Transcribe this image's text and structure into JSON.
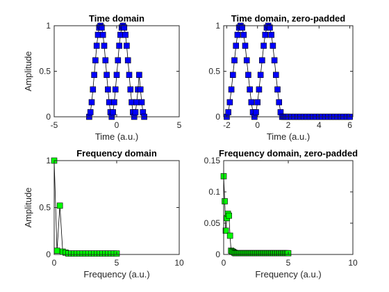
{
  "chart_data": [
    {
      "type": "line",
      "title": "Time domain",
      "xlabel": "Time (a.u.)",
      "ylabel": "Amplitude",
      "xlim": [
        -5,
        5
      ],
      "ylim": [
        0,
        1
      ],
      "xticks": [
        "-5",
        "0",
        "5"
      ],
      "yticks": [
        "0",
        "0.5",
        "1"
      ],
      "marker_color": "#0000ff",
      "line_color": "#000000",
      "series": [
        {
          "x": [
            -2.2,
            -2.1,
            -2.0,
            -1.9,
            -1.8,
            -1.7,
            -1.6,
            -1.5,
            -1.4,
            -1.3,
            -1.2,
            -1.1,
            -1.0,
            -0.9,
            -0.8,
            -0.7,
            -0.6,
            -0.5,
            -0.4,
            -0.3,
            -0.2,
            -0.1,
            0.0,
            0.1,
            0.2,
            0.3,
            0.4,
            0.5,
            0.6,
            0.7,
            0.8,
            0.9,
            1.0,
            1.1,
            1.2,
            1.3,
            1.4,
            1.5,
            1.6,
            1.7,
            1.8,
            1.9,
            2.0,
            2.1,
            2.2
          ],
          "y": [
            0.0,
            0.05,
            0.16,
            0.3,
            0.46,
            0.62,
            0.78,
            0.9,
            0.98,
            1.0,
            0.98,
            0.9,
            0.78,
            0.62,
            0.46,
            0.3,
            0.16,
            0.05,
            0.0,
            0.05,
            0.16,
            0.3,
            0.46,
            0.62,
            0.78,
            0.9,
            0.98,
            1.0,
            0.98,
            0.9,
            0.78,
            0.62,
            0.46,
            0.3,
            0.16,
            0.05,
            0.0,
            0.05,
            0.16,
            0.3,
            0.46,
            0.3,
            0.16,
            0.05,
            0.0
          ]
        }
      ]
    },
    {
      "type": "line",
      "title": "Time domain, zero-padded",
      "xlabel": "Time (a.u.)",
      "ylabel": "",
      "xlim": [
        -2.2,
        6.2
      ],
      "ylim": [
        0,
        1
      ],
      "xticks": [
        "-2",
        "0",
        "2",
        "4",
        "6"
      ],
      "xtick_values": [
        -2,
        0,
        2,
        4,
        6
      ],
      "yticks": [
        "0",
        "0.5",
        "1"
      ],
      "marker_color": "#0000ff",
      "line_color": "#000000",
      "series": [
        {
          "x": [
            -2.0,
            -1.9,
            -1.8,
            -1.7,
            -1.6,
            -1.5,
            -1.4,
            -1.3,
            -1.2,
            -1.1,
            -1.0,
            -0.9,
            -0.8,
            -0.7,
            -0.6,
            -0.5,
            -0.4,
            -0.3,
            -0.2,
            -0.1,
            0.0,
            0.1,
            0.2,
            0.3,
            0.4,
            0.5,
            0.6,
            0.7,
            0.8,
            0.9,
            1.0,
            1.1,
            1.2,
            1.3,
            1.4,
            1.5,
            1.6,
            1.7,
            1.8,
            1.9,
            2.0,
            2.2,
            2.4,
            2.6,
            2.8,
            3.0,
            3.2,
            3.4,
            3.6,
            3.8,
            4.0,
            4.2,
            4.4,
            4.6,
            4.8,
            5.0,
            5.2,
            5.4,
            5.6,
            5.8,
            6.0
          ],
          "y": [
            0.0,
            0.05,
            0.16,
            0.3,
            0.46,
            0.62,
            0.78,
            0.9,
            0.98,
            1.0,
            0.98,
            0.9,
            0.78,
            0.62,
            0.46,
            0.3,
            0.16,
            0.05,
            0.0,
            0.05,
            0.16,
            0.3,
            0.46,
            0.62,
            0.78,
            0.9,
            0.98,
            1.0,
            0.98,
            0.9,
            0.78,
            0.62,
            0.46,
            0.3,
            0.16,
            0.05,
            0.0,
            0.0,
            0.0,
            0.0,
            0.0,
            0.0,
            0.0,
            0.0,
            0.0,
            0.0,
            0.0,
            0.0,
            0.0,
            0.0,
            0.0,
            0.0,
            0.0,
            0.0,
            0.0,
            0.0,
            0.0,
            0.0,
            0.0,
            0.0,
            0.0
          ]
        }
      ]
    },
    {
      "type": "line",
      "title": "Frequency domain",
      "xlabel": "Frequency (a.u.)",
      "ylabel": "Amplitude",
      "xlim": [
        0,
        10
      ],
      "ylim": [
        0,
        1
      ],
      "xticks": [
        "0",
        "5",
        "10"
      ],
      "yticks": [
        "0",
        "0.5",
        "1"
      ],
      "marker_color": "#00ff00",
      "line_color": "#000000",
      "series": [
        {
          "x": [
            0.0,
            0.227,
            0.455,
            0.682,
            0.909,
            1.136,
            1.364,
            1.591,
            1.818,
            2.045,
            2.273,
            2.5,
            2.727,
            2.955,
            3.182,
            3.409,
            3.636,
            3.864,
            4.091,
            4.318,
            4.545,
            4.773,
            5.0
          ],
          "y": [
            1.0,
            0.04,
            0.52,
            0.03,
            0.02,
            0.01,
            0.01,
            0.01,
            0.01,
            0.01,
            0.01,
            0.01,
            0.01,
            0.01,
            0.01,
            0.01,
            0.01,
            0.01,
            0.01,
            0.01,
            0.01,
            0.01,
            0.01
          ]
        }
      ]
    },
    {
      "type": "line",
      "title": "Frequency domain, zero-padded",
      "xlabel": "Frequency (a.u.)",
      "ylabel": "",
      "xlim": [
        0,
        10
      ],
      "ylim": [
        0,
        0.15
      ],
      "xticks": [
        "0",
        "5",
        "10"
      ],
      "yticks": [
        "0",
        "0.05",
        "0.1",
        "0.15"
      ],
      "marker_color": "#00ff00",
      "line_color": "#000000",
      "series": [
        {
          "x": [
            0.0,
            0.082,
            0.164,
            0.246,
            0.328,
            0.41,
            0.492,
            0.574,
            0.656,
            0.738,
            0.82,
            0.902,
            0.984,
            1.066,
            1.148,
            1.23,
            1.312,
            1.394,
            1.476,
            1.558,
            1.64,
            1.722,
            1.804,
            1.886,
            1.968,
            2.05,
            2.132,
            2.214,
            2.296,
            2.378,
            2.46,
            2.542,
            2.624,
            2.706,
            2.788,
            2.87,
            2.952,
            3.034,
            3.116,
            3.198,
            3.28,
            3.362,
            3.444,
            3.526,
            3.608,
            3.69,
            3.772,
            3.854,
            3.936,
            4.018,
            4.1,
            4.182,
            4.264,
            4.346,
            4.428,
            4.51,
            4.592,
            4.674,
            4.756,
            4.838,
            4.92,
            5.0
          ],
          "y": [
            0.125,
            0.085,
            0.038,
            0.058,
            0.065,
            0.062,
            0.03,
            0.006,
            0.005,
            0.004,
            0.003,
            0.002,
            0.002,
            0.002,
            0.002,
            0.002,
            0.002,
            0.002,
            0.002,
            0.002,
            0.002,
            0.002,
            0.002,
            0.002,
            0.002,
            0.002,
            0.002,
            0.002,
            0.002,
            0.002,
            0.002,
            0.002,
            0.002,
            0.002,
            0.002,
            0.002,
            0.002,
            0.002,
            0.002,
            0.002,
            0.002,
            0.002,
            0.002,
            0.002,
            0.002,
            0.002,
            0.002,
            0.002,
            0.002,
            0.002,
            0.002,
            0.002,
            0.002,
            0.002,
            0.002,
            0.002,
            0.002,
            0.002,
            0.002,
            0.002,
            0.002,
            0.002
          ]
        }
      ]
    }
  ]
}
